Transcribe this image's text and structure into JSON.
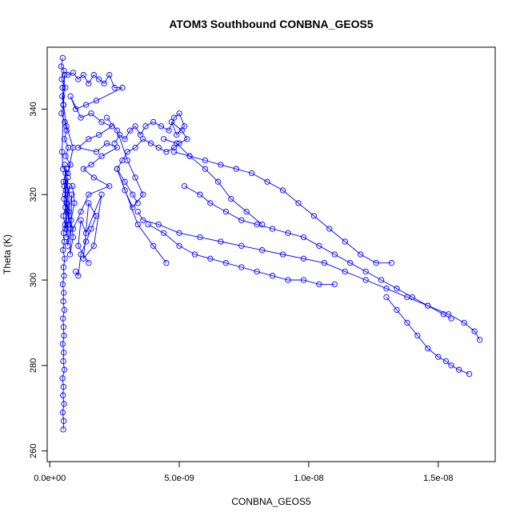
{
  "chart_data": {
    "type": "scatter",
    "title": "ATOM3 Southbound CONBNA_GEOS5",
    "xlabel": "CONBNA_GEOS5",
    "ylabel": "Theta (K)",
    "xlim": [
      -1e-10,
      1.72e-08
    ],
    "ylim": [
      257.5,
      354.5
    ],
    "x_ticks": [
      0,
      5e-09,
      1e-08,
      1.5e-08
    ],
    "x_tick_labels": [
      "0.0e+00",
      "5.0e-09",
      "1.0e-08",
      "1.5e-08"
    ],
    "y_ticks": [
      260,
      280,
      300,
      320,
      340
    ],
    "y_tick_labels": [
      "260",
      "280",
      "300",
      "320",
      "340"
    ],
    "grid": false,
    "series_color": "#0000ff",
    "marker": "open-circle",
    "connected": true,
    "series": [
      {
        "x": [
          5.2e-10,
          5.4e-10,
          5e-10,
          5.5e-10,
          5.1e-10,
          5.3e-10,
          4.9e-10,
          5.6e-10,
          5.2e-10,
          5.4e-10,
          5e-10,
          5.5e-10,
          5.3e-10,
          5.1e-10,
          5.6e-10,
          5.2e-10,
          5.4e-10,
          5e-10,
          5.5e-10,
          5.3e-10,
          5.8e-10,
          5.1e-10,
          5.6e-10,
          5.4e-10,
          5.9e-10,
          5.2e-10,
          6e-10,
          5.5e-10,
          6.2e-10,
          5.3e-10,
          6.1e-10,
          5.8e-10,
          6.4e-10,
          5.6e-10,
          6.5e-10,
          6e-10,
          6.8e-10,
          5.9e-10,
          7e-10,
          6.3e-10,
          7.2e-10,
          6.6e-10,
          7.5e-10,
          6.9e-10,
          8e-10,
          7.3e-10,
          8.5e-10,
          7.8e-10,
          9e-10,
          8.2e-10,
          9.5e-10,
          8.8e-10
        ],
        "y": [
          265,
          267,
          269,
          271,
          273,
          275,
          277,
          279,
          281,
          283,
          285,
          287,
          289,
          291,
          293,
          295,
          297,
          299,
          301,
          303,
          305,
          307,
          309,
          311,
          313,
          315,
          317,
          319,
          321,
          323,
          325,
          327,
          318,
          322,
          326,
          312,
          316,
          320,
          324,
          310,
          314,
          318,
          322,
          308,
          312,
          316,
          320,
          306,
          310,
          314,
          318,
          322
        ]
      },
      {
        "x": [
          5e-10,
          4.4e-10,
          5.5e-10,
          4.6e-10,
          6e-10,
          4.8e-10,
          5.2e-10,
          4.5e-10,
          5.8e-10,
          6.5e-10,
          5.6e-10,
          7.2e-10,
          6.1e-10,
          8e-10,
          7e-10,
          9e-10,
          6.4e-10,
          5.3e-10,
          4.9e-10,
          5.7e-10,
          4.7e-10,
          5.1e-10
        ],
        "y": [
          352,
          350,
          349,
          347,
          345,
          343,
          341,
          339,
          337,
          335,
          333,
          331,
          329,
          327,
          325,
          331,
          336,
          341,
          345,
          348,
          330,
          326
        ]
      },
      {
        "x": [
          7e-10,
          9e-10,
          1.1e-09,
          1.3e-09,
          1.5e-09,
          1.7e-09,
          1.9e-09,
          2.1e-09,
          2.3e-09,
          2.5e-09,
          2.8e-09,
          1.8e-09,
          1.4e-09,
          1e-09,
          8e-10,
          1.2e-09,
          1.6e-09,
          2e-09,
          2.4e-09,
          1.9e-09,
          1.5e-09,
          1.1e-09,
          1.8e-09,
          2.2e-09,
          2.6e-09,
          2e-09,
          1.6e-09,
          1.3e-09,
          1.7e-09,
          2.3e-09,
          1.5e-09,
          1.2e-09,
          9e-10
        ],
        "y": [
          348,
          348.5,
          347,
          348,
          346,
          348,
          347,
          346,
          348,
          345,
          345,
          342,
          341,
          340,
          343,
          338,
          339,
          337,
          336,
          334,
          333,
          331,
          330,
          332,
          331,
          329,
          327,
          326,
          324,
          322,
          320,
          316,
          312
        ]
      },
      {
        "x": [
          1e-09,
          1.1e-09,
          1.2e-09,
          1.4e-09,
          1.6e-09,
          1.8e-09,
          1.5e-09,
          1.3e-09,
          1.7e-09,
          2e-09,
          1.4e-09,
          1.2e-09,
          1.1e-09,
          1.5e-09
        ],
        "y": [
          302,
          301,
          306,
          309,
          312,
          315,
          318,
          305,
          308,
          320,
          311,
          314,
          308,
          304
        ]
      },
      {
        "x": [
          2.5e-09,
          2.7e-09,
          2.9e-09,
          3.1e-09,
          3.3e-09,
          3.5e-09,
          3.7e-09,
          4e-09,
          4.3e-09,
          4.6e-09,
          4.8e-09,
          5e-09,
          5.2e-09,
          4.9e-09,
          4.7e-09,
          5.1e-09,
          5.3e-09,
          5e-09,
          4.8e-09,
          4.5e-09,
          4.2e-09,
          3.9e-09,
          3.6e-09,
          3.3e-09,
          3e-09,
          2.8e-09,
          2.6e-09,
          2.9e-09,
          3.2e-09,
          3.4e-09
        ],
        "y": [
          332,
          334,
          333,
          335,
          336,
          334,
          336,
          337,
          336,
          335,
          338,
          339,
          336,
          334,
          337,
          335,
          333,
          332,
          331,
          330,
          331,
          332,
          333,
          331,
          330,
          328,
          326,
          323,
          320,
          318
        ]
      },
      {
        "x": [
          3.4e-09,
          3.6e-09,
          4.2e-09,
          5e-09,
          5.8e-09,
          6.6e-09,
          7.4e-09,
          8.2e-09,
          9e-09,
          9.8e-09,
          1.06e-08,
          1.14e-08,
          1.22e-08,
          1.3e-08,
          1.38e-08,
          1.46e-08,
          1.54e-08,
          1.6e-08,
          1.64e-08,
          1.66e-08
        ],
        "y": [
          316,
          314,
          313,
          311,
          310,
          309,
          308,
          307,
          306,
          305,
          304,
          302,
          300,
          298,
          296,
          294,
          292,
          290,
          288,
          286
        ]
      },
      {
        "x": [
          4.8e-09,
          5.4e-09,
          6e-09,
          6.6e-09,
          7.2e-09,
          7.8e-09,
          8.4e-09,
          9e-09,
          9.6e-09,
          1.02e-08,
          1.08e-08,
          1.14e-08,
          1.2e-08,
          1.26e-08,
          1.32e-08
        ],
        "y": [
          330,
          329,
          328,
          327,
          326,
          325,
          323,
          321,
          318,
          315,
          312,
          309,
          306,
          304,
          304
        ]
      },
      {
        "x": [
          5.2e-09,
          5.8e-09,
          6.2e-09,
          6.8e-09,
          7.4e-09,
          8e-09,
          8.6e-09,
          9.2e-09,
          9.8e-09,
          1.04e-08,
          1.1e-08,
          1.16e-08,
          1.22e-08,
          1.28e-08,
          1.34e-08,
          1.4e-08,
          1.46e-08,
          1.52e-08,
          1.55e-08
        ],
        "y": [
          322,
          320,
          318,
          316,
          314,
          313,
          312,
          311,
          310,
          308,
          306,
          304,
          302,
          300,
          298,
          296,
          294,
          292,
          291
        ]
      },
      {
        "x": [
          3.8e-09,
          4.4e-09,
          5e-09,
          5.6e-09,
          6.2e-09,
          6.8e-09,
          7.4e-09,
          8e-09,
          8.6e-09,
          9.2e-09,
          9.8e-09,
          1.04e-08,
          1.1e-08
        ],
        "y": [
          313,
          311,
          308,
          306,
          305,
          304,
          303,
          302,
          301,
          300,
          300,
          299,
          299
        ]
      },
      {
        "x": [
          1.3e-08,
          1.34e-08,
          1.38e-08,
          1.42e-08,
          1.46e-08,
          1.5e-08,
          1.53e-08,
          1.55e-08,
          1.58e-08,
          1.62e-08
        ],
        "y": [
          296,
          293,
          290,
          287,
          284,
          282,
          281,
          280,
          279,
          278
        ]
      },
      {
        "x": [
          4.4e-09,
          4.9e-09,
          5.4e-09,
          6e-09,
          6.5e-09,
          7e-09,
          7.6e-09,
          8.2e-09
        ],
        "y": [
          333,
          332,
          329,
          326,
          323,
          319,
          316,
          313
        ]
      },
      {
        "x": [
          2.2e-09,
          2.6e-09,
          3e-09,
          3.3e-09,
          3.6e-09,
          3.2e-09,
          2.9e-09,
          2.6e-09,
          3.4e-09,
          4e-09,
          4.5e-09
        ],
        "y": [
          338,
          335,
          328,
          324,
          320,
          317,
          321,
          326,
          313,
          308,
          304
        ]
      }
    ]
  }
}
